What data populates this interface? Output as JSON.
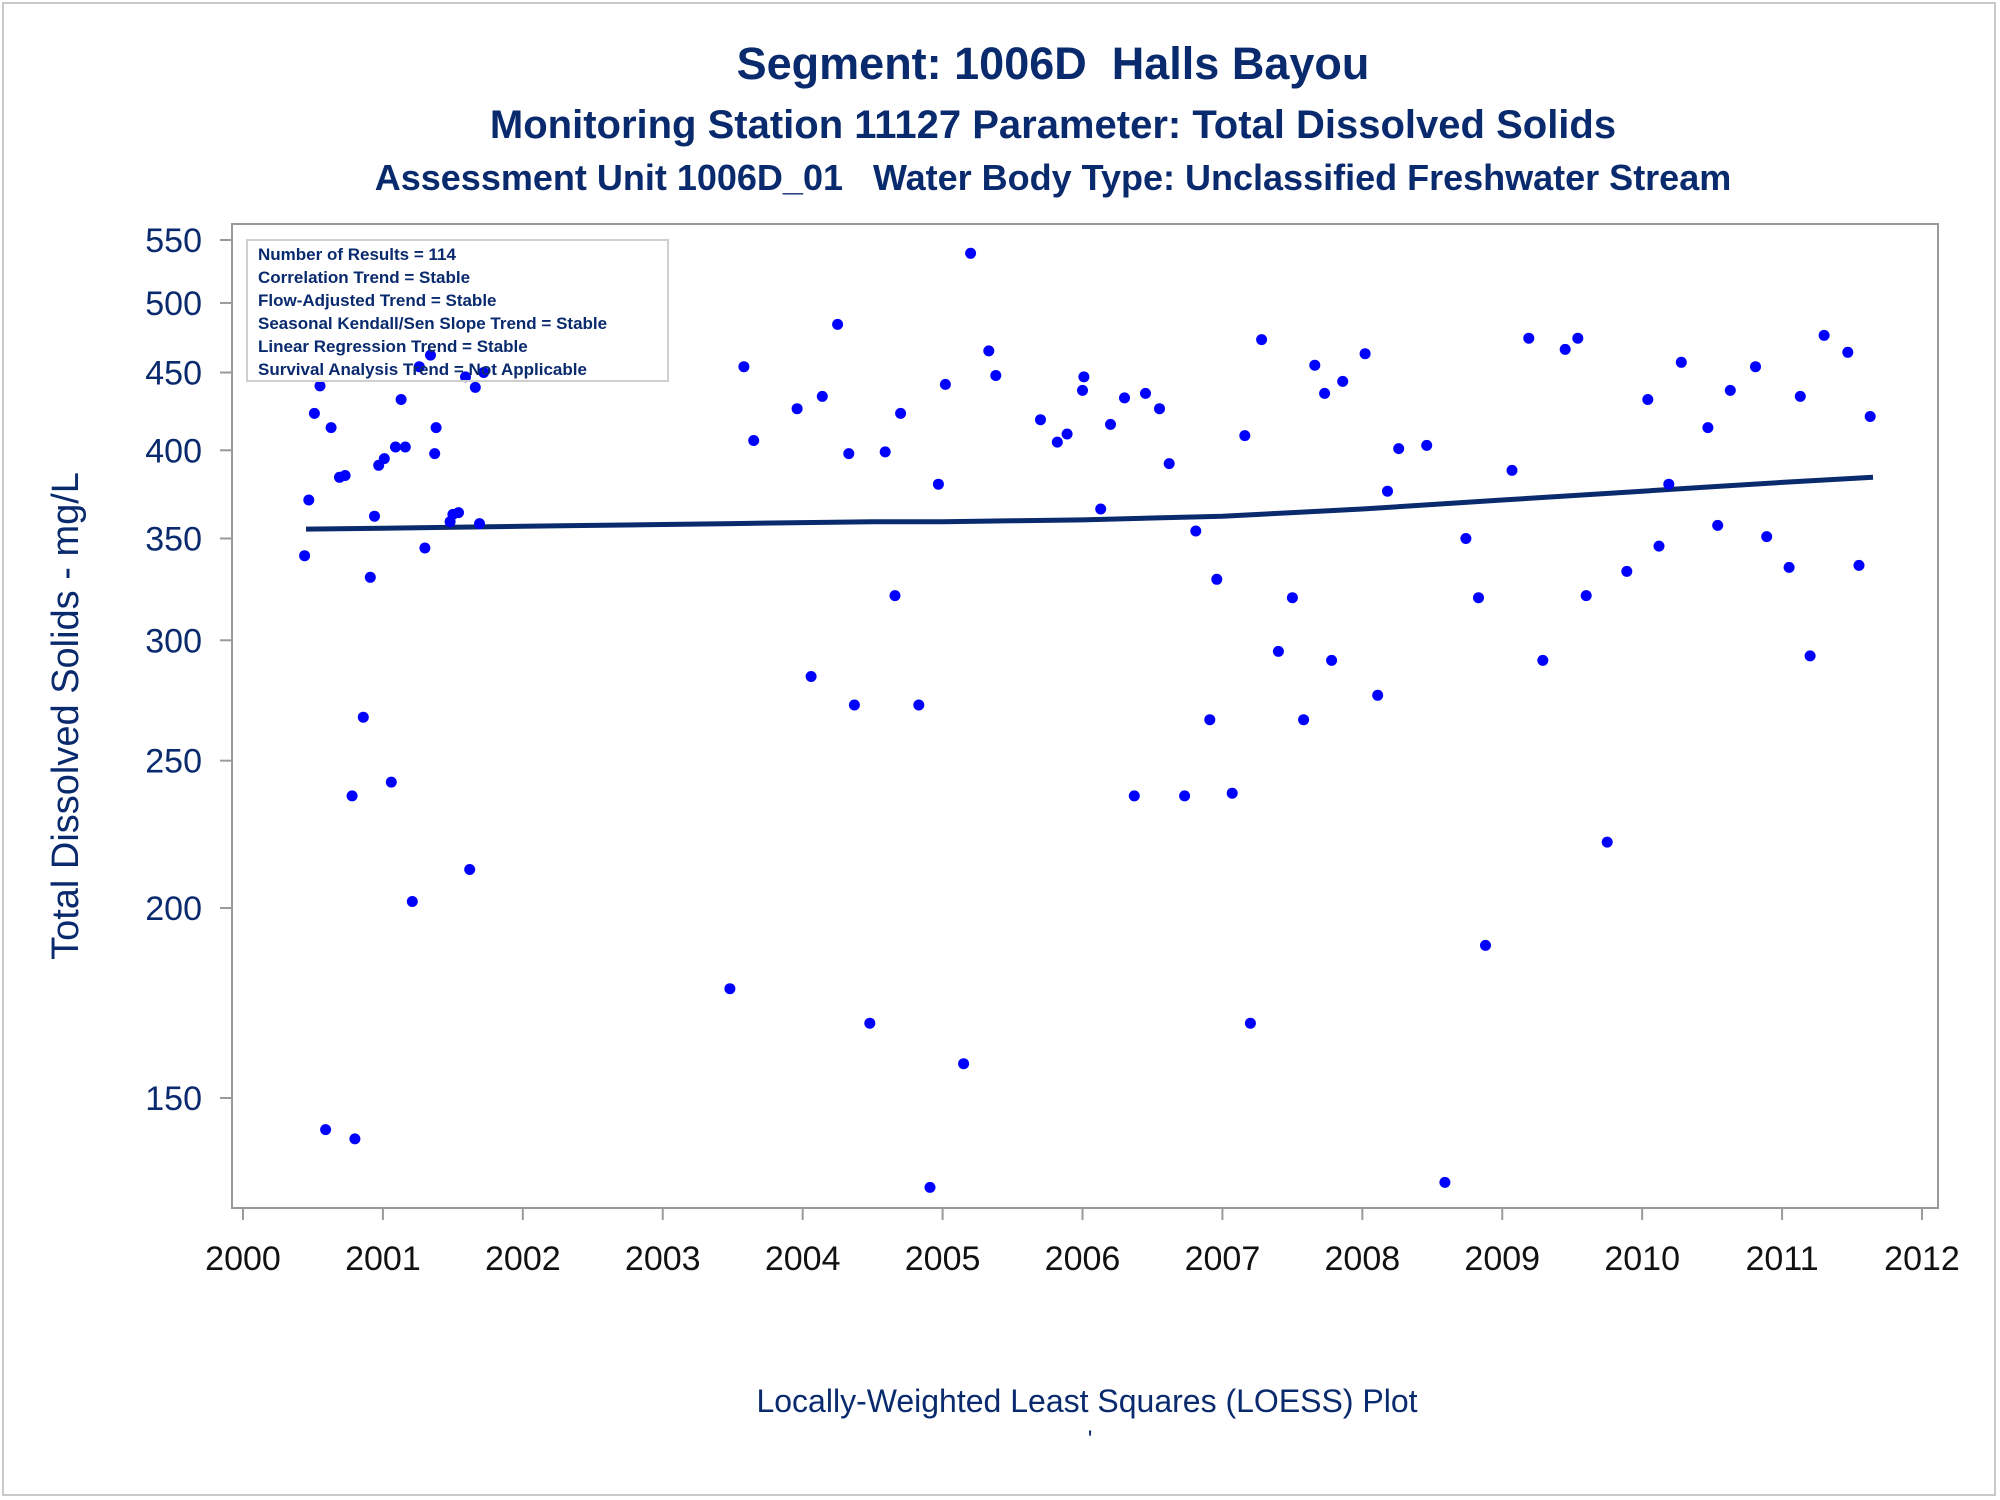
{
  "chart_data": {
    "type": "scatter",
    "title": "Segment: 1006D  Halls Bayou",
    "subtitle": "Monitoring Station 11127 Parameter: Total Dissolved Solids",
    "subtitle2": "Assessment Unit 1006D_01   Water Body Type: Unclassified Freshwater Stream",
    "ylabel": "Total Dissolved Solids - mg/L",
    "xlabel": "",
    "footnote": "Locally-Weighted Least Squares (LOESS) Plot",
    "footnote_mark": "'",
    "y_scale": "log",
    "xlim": [
      2000,
      2012
    ],
    "ylim": [
      129,
      556
    ],
    "x_ticks": [
      2000,
      2001,
      2002,
      2003,
      2004,
      2005,
      2006,
      2007,
      2008,
      2009,
      2010,
      2011,
      2012
    ],
    "y_ticks": [
      150,
      200,
      250,
      300,
      350,
      400,
      450,
      500,
      550
    ],
    "grid": false,
    "legend": "none",
    "colors": {
      "points": "#0000ff",
      "trend_line": "#0a2a6e",
      "text": "#0a2a6e",
      "axis": "#9a9a9a"
    },
    "stats_box": {
      "position": "top-left",
      "lines": [
        "Number of Results = 114",
        "Correlation Trend = Stable",
        "Flow-Adjusted Trend = Stable",
        "Seasonal Kendall/Sen Slope Trend = Stable",
        "Linear Regression Trend = Stable",
        "Survival Analysis Trend = Not Applicable"
      ]
    },
    "series": [
      {
        "type": "scatter",
        "points": [
          [
            2000.44,
            341
          ],
          [
            2000.47,
            371
          ],
          [
            2000.51,
            423
          ],
          [
            2000.55,
            441
          ],
          [
            2000.59,
            143
          ],
          [
            2000.63,
            414
          ],
          [
            2000.69,
            384
          ],
          [
            2000.73,
            385
          ],
          [
            2000.78,
            237
          ],
          [
            2000.8,
            141
          ],
          [
            2000.86,
            267
          ],
          [
            2000.91,
            330
          ],
          [
            2000.94,
            362
          ],
          [
            2000.97,
            391
          ],
          [
            2001.01,
            395
          ],
          [
            2001.06,
            242
          ],
          [
            2001.09,
            402
          ],
          [
            2001.13,
            432
          ],
          [
            2001.16,
            402
          ],
          [
            2001.21,
            202
          ],
          [
            2001.26,
            454
          ],
          [
            2001.3,
            345
          ],
          [
            2001.34,
            462
          ],
          [
            2001.37,
            398
          ],
          [
            2001.38,
            414
          ],
          [
            2001.48,
            359
          ],
          [
            2001.5,
            363
          ],
          [
            2001.54,
            364
          ],
          [
            2001.59,
            447
          ],
          [
            2001.62,
            212
          ],
          [
            2001.66,
            440
          ],
          [
            2001.69,
            358
          ],
          [
            2001.72,
            450
          ],
          [
            2003.48,
            177
          ],
          [
            2003.58,
            454
          ],
          [
            2003.65,
            406
          ],
          [
            2003.96,
            426
          ],
          [
            2004.06,
            284
          ],
          [
            2004.14,
            434
          ],
          [
            2004.25,
            484
          ],
          [
            2004.33,
            398
          ],
          [
            2004.37,
            272
          ],
          [
            2004.48,
            168
          ],
          [
            2004.59,
            399
          ],
          [
            2004.66,
            321
          ],
          [
            2004.7,
            423
          ],
          [
            2004.83,
            272
          ],
          [
            2004.91,
            131
          ],
          [
            2004.97,
            380
          ],
          [
            2005.02,
            442
          ],
          [
            2005.15,
            158
          ],
          [
            2005.2,
            539
          ],
          [
            2005.33,
            465
          ],
          [
            2005.38,
            448
          ],
          [
            2005.7,
            419
          ],
          [
            2005.82,
            405
          ],
          [
            2005.89,
            410
          ],
          [
            2006.0,
            438
          ],
          [
            2006.01,
            447
          ],
          [
            2006.13,
            366
          ],
          [
            2006.2,
            416
          ],
          [
            2006.3,
            433
          ],
          [
            2006.37,
            237
          ],
          [
            2006.45,
            436
          ],
          [
            2006.55,
            426
          ],
          [
            2006.62,
            392
          ],
          [
            2006.73,
            237
          ],
          [
            2006.81,
            354
          ],
          [
            2006.91,
            266
          ],
          [
            2006.96,
            329
          ],
          [
            2007.07,
            238
          ],
          [
            2007.16,
            409
          ],
          [
            2007.2,
            168
          ],
          [
            2007.28,
            473
          ],
          [
            2007.4,
            295
          ],
          [
            2007.5,
            320
          ],
          [
            2007.58,
            266
          ],
          [
            2007.66,
            455
          ],
          [
            2007.73,
            436
          ],
          [
            2007.78,
            291
          ],
          [
            2007.86,
            444
          ],
          [
            2008.02,
            463
          ],
          [
            2008.11,
            276
          ],
          [
            2008.18,
            376
          ],
          [
            2008.26,
            401
          ],
          [
            2008.46,
            403
          ],
          [
            2008.59,
            132
          ],
          [
            2008.74,
            350
          ],
          [
            2008.83,
            320
          ],
          [
            2008.88,
            189
          ],
          [
            2009.07,
            388
          ],
          [
            2009.19,
            474
          ],
          [
            2009.29,
            291
          ],
          [
            2009.45,
            466
          ],
          [
            2009.54,
            474
          ],
          [
            2009.6,
            321
          ],
          [
            2009.75,
            221
          ],
          [
            2009.89,
            333
          ],
          [
            2010.04,
            432
          ],
          [
            2010.12,
            346
          ],
          [
            2010.19,
            380
          ],
          [
            2010.28,
            457
          ],
          [
            2010.47,
            414
          ],
          [
            2010.54,
            357
          ],
          [
            2010.63,
            438
          ],
          [
            2010.81,
            454
          ],
          [
            2010.89,
            351
          ],
          [
            2011.05,
            335
          ],
          [
            2011.13,
            434
          ],
          [
            2011.2,
            293
          ],
          [
            2011.3,
            476
          ],
          [
            2011.47,
            464
          ],
          [
            2011.55,
            336
          ],
          [
            2011.63,
            421
          ]
        ]
      },
      {
        "type": "line",
        "points": [
          [
            2000.45,
            355
          ],
          [
            2001.0,
            355.5
          ],
          [
            2001.5,
            356
          ],
          [
            2002.0,
            356.5
          ],
          [
            2002.5,
            357
          ],
          [
            2003.0,
            357.5
          ],
          [
            2003.5,
            358
          ],
          [
            2004.0,
            358.5
          ],
          [
            2004.5,
            359
          ],
          [
            2005.0,
            359
          ],
          [
            2005.5,
            359.5
          ],
          [
            2006.0,
            360
          ],
          [
            2006.5,
            361
          ],
          [
            2007.0,
            362
          ],
          [
            2007.5,
            364
          ],
          [
            2008.0,
            366
          ],
          [
            2008.5,
            368.5
          ],
          [
            2009.0,
            371
          ],
          [
            2009.5,
            373.5
          ],
          [
            2010.0,
            376
          ],
          [
            2010.5,
            378.5
          ],
          [
            2011.0,
            381
          ],
          [
            2011.65,
            384
          ]
        ]
      }
    ]
  }
}
